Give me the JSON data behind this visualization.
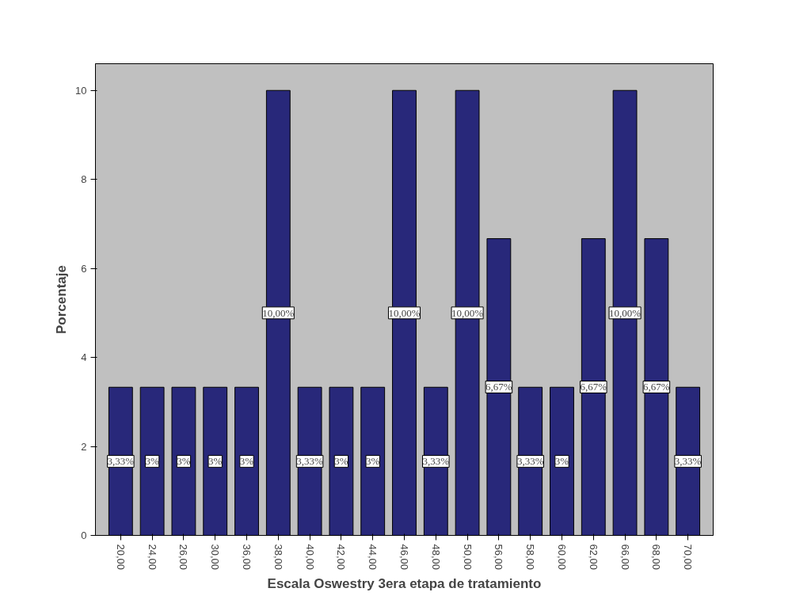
{
  "chart_data": {
    "type": "bar",
    "xlabel": "Escala Oswestry 3era etapa de tratamiento",
    "ylabel": "Porcentaje",
    "categories": [
      "20,00",
      "24,00",
      "26,00",
      "30,00",
      "36,00",
      "38,00",
      "40,00",
      "42,00",
      "44,00",
      "46,00",
      "48,00",
      "50,00",
      "56,00",
      "58,00",
      "60,00",
      "62,00",
      "66,00",
      "68,00",
      "70,00"
    ],
    "values": [
      3.33,
      3.33,
      3.33,
      3.33,
      3.33,
      10,
      3.33,
      3.33,
      3.33,
      10,
      3.33,
      10,
      6.67,
      3.33,
      3.33,
      6.67,
      10,
      6.67,
      3.33
    ],
    "value_labels": [
      "3,33%",
      "3%",
      "3%",
      "3%",
      "3%",
      "10,00%",
      "3,33%",
      "3%",
      "3%",
      "10,00%",
      "3,33%",
      "10,00%",
      "6,67%",
      "3,33%",
      "3%",
      "6,67%",
      "10,00%",
      "6,67%",
      "3,33%"
    ],
    "color": "#28287a",
    "ylim": [
      0,
      10.6
    ],
    "yticks": [
      0,
      2,
      4,
      6,
      8,
      10
    ],
    "grid": false
  }
}
